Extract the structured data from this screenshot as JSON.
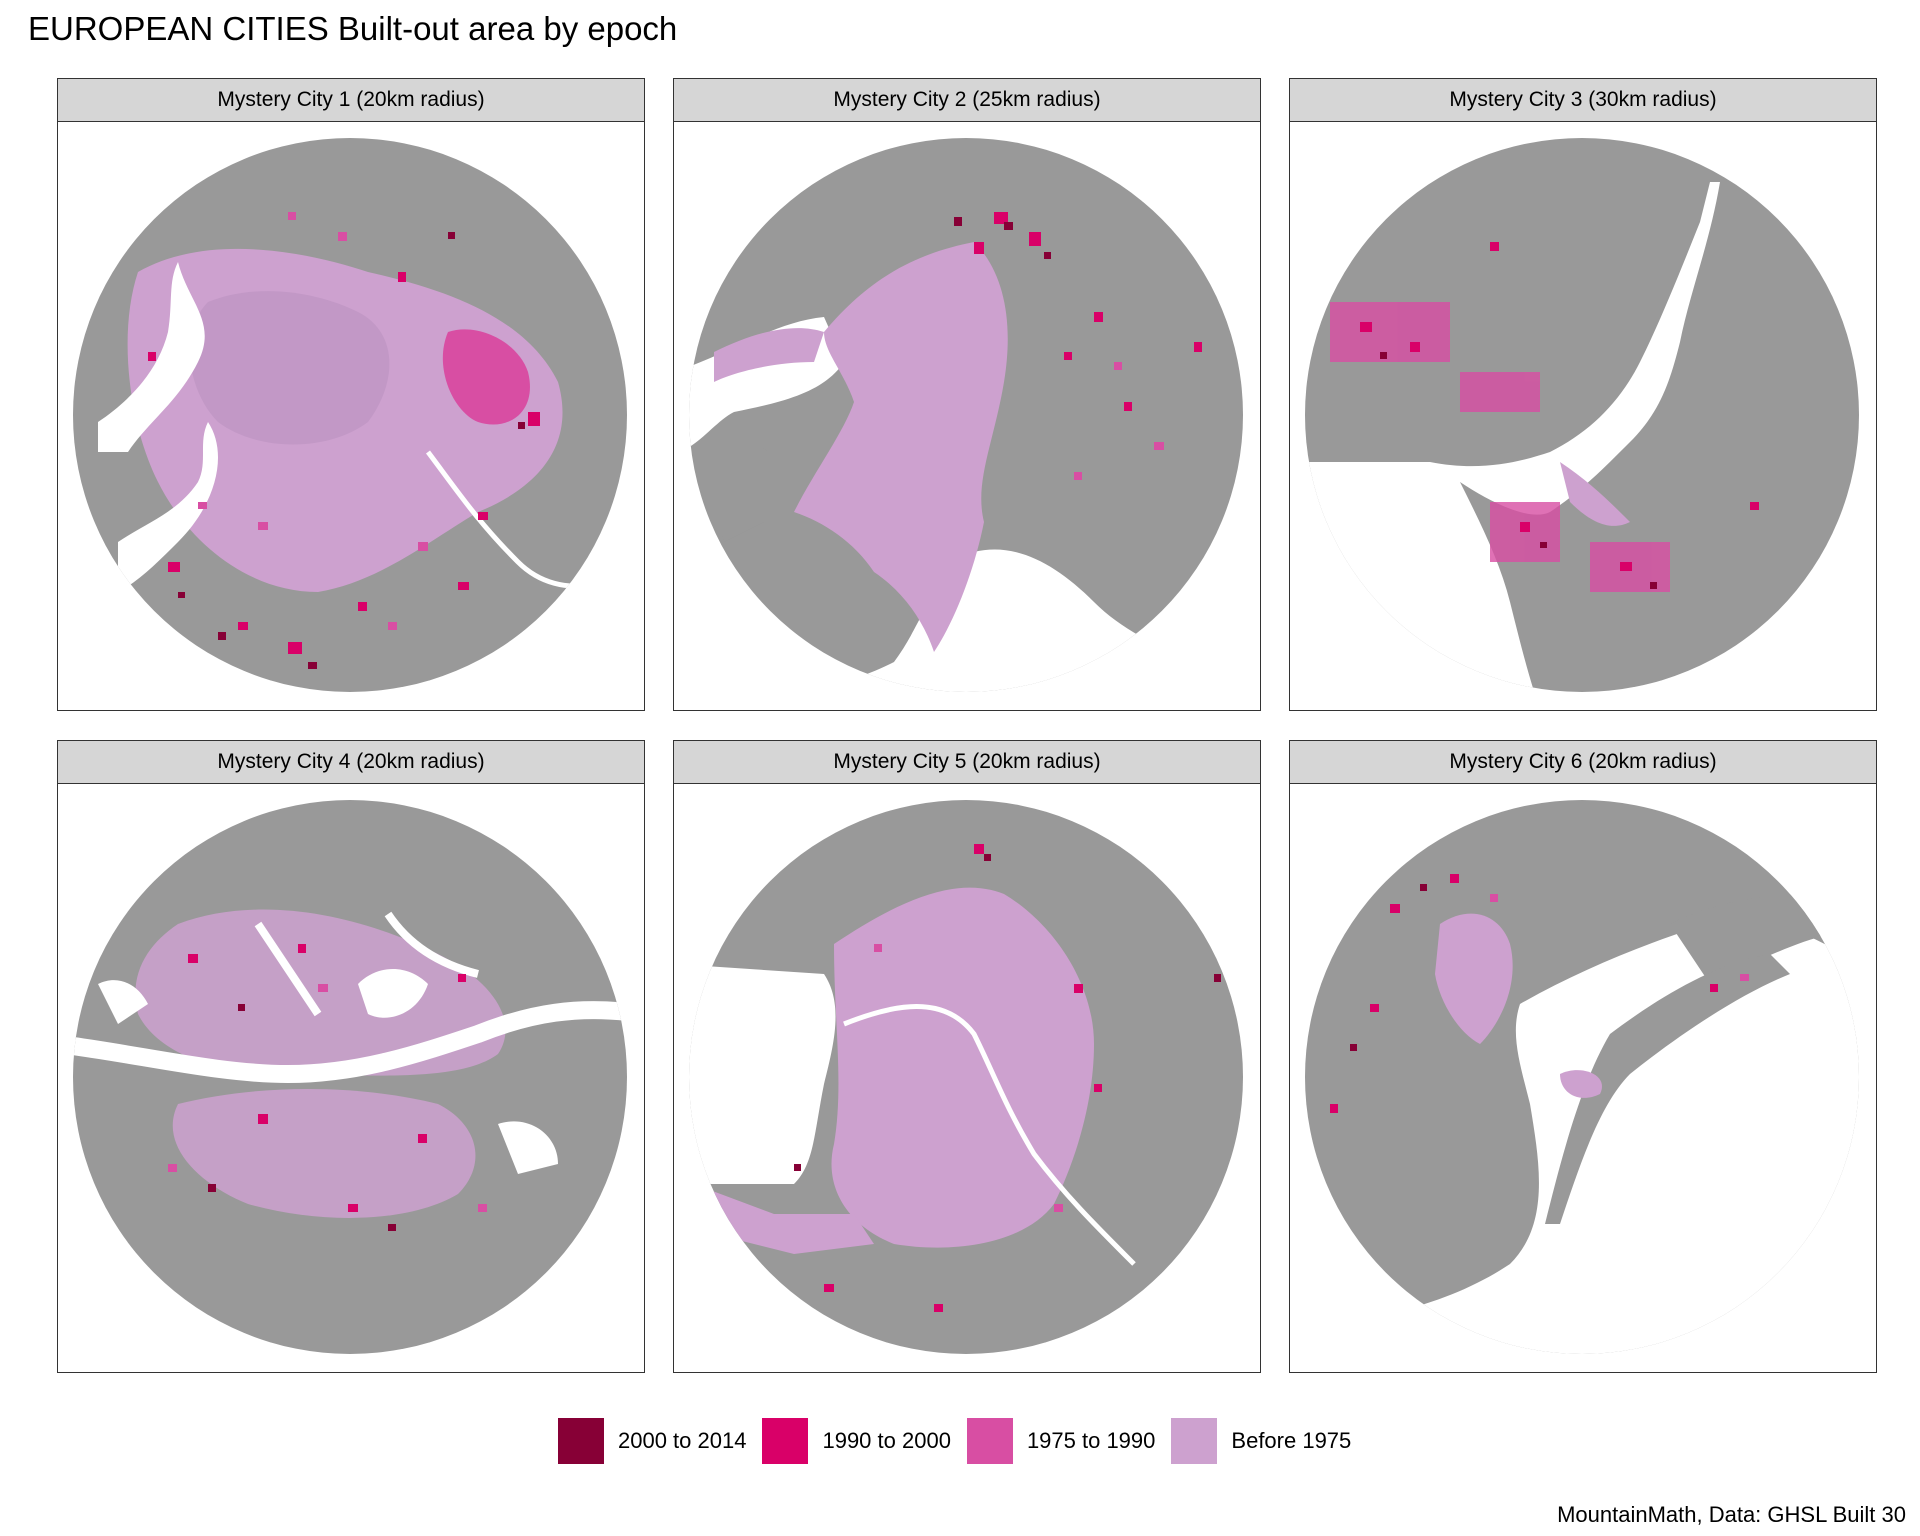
{
  "title": "EUROPEAN CITIES Built-out area by epoch",
  "caption": "MountainMath, Data: GHSL Built 30",
  "colors": {
    "unbuilt": "#999999",
    "water": "#ffffff",
    "before_1975": "#cda1cf",
    "e1975_1990": "#d84ea3",
    "e1990_2000": "#d90068",
    "e2000_2014": "#870036"
  },
  "legend": [
    {
      "label": "2000 to 2014",
      "color": "#870036"
    },
    {
      "label": "1990 to 2000",
      "color": "#d90068"
    },
    {
      "label": "1975 to 1990",
      "color": "#d84ea3"
    },
    {
      "label": "Before 1975",
      "color": "#cda1cf"
    }
  ],
  "panels": [
    {
      "label": "Mystery City 1 (20km radius)",
      "style": "sprawl"
    },
    {
      "label": "Mystery City 2 (25km radius)",
      "style": "coast-west"
    },
    {
      "label": "Mystery City 3 (30km radius)",
      "style": "estuary"
    },
    {
      "label": "Mystery City 4 (20km radius)",
      "style": "archipelago"
    },
    {
      "label": "Mystery City 5 (20km radius)",
      "style": "river-delta"
    },
    {
      "label": "Mystery City 6 (20km radius)",
      "style": "lagoon"
    }
  ]
}
